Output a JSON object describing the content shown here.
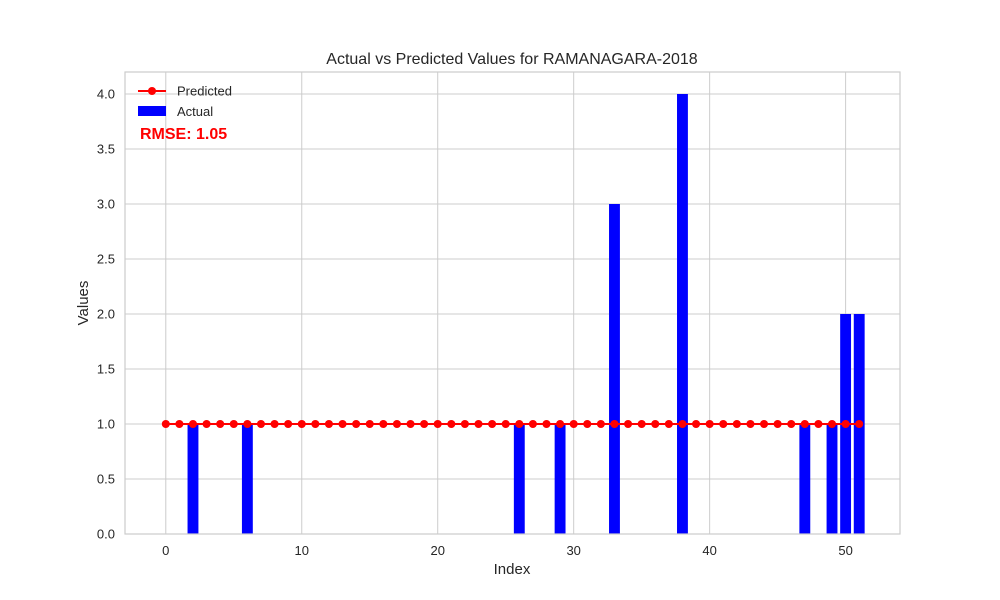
{
  "chart_data": {
    "type": "bar",
    "title": "Actual vs Predicted Values for RAMANAGARA-2018",
    "xlabel": "Index",
    "ylabel": "Values",
    "xlim": [
      -3,
      54
    ],
    "ylim": [
      0,
      4.2
    ],
    "xticks": [
      0,
      10,
      20,
      30,
      40,
      50
    ],
    "yticks": [
      0.0,
      0.5,
      1.0,
      1.5,
      2.0,
      2.5,
      3.0,
      3.5,
      4.0
    ],
    "xtick_labels": [
      "0",
      "10",
      "20",
      "30",
      "40",
      "50"
    ],
    "ytick_labels": [
      "0.0",
      "0.5",
      "1.0",
      "1.5",
      "2.0",
      "2.5",
      "3.0",
      "3.5",
      "4.0"
    ],
    "grid": true,
    "legend": {
      "position": "top-left",
      "entries": [
        "Predicted",
        "Actual"
      ]
    },
    "annotation": {
      "text": "RMSE: 1.05",
      "color": "#ff0000"
    },
    "series": [
      {
        "name": "Predicted",
        "type": "line",
        "color": "#ff0000",
        "x": [
          0,
          1,
          2,
          3,
          4,
          5,
          6,
          7,
          8,
          9,
          10,
          11,
          12,
          13,
          14,
          15,
          16,
          17,
          18,
          19,
          20,
          21,
          22,
          23,
          24,
          25,
          26,
          27,
          28,
          29,
          30,
          31,
          32,
          33,
          34,
          35,
          36,
          37,
          38,
          39,
          40,
          41,
          42,
          43,
          44,
          45,
          46,
          47,
          48,
          49,
          50,
          51
        ],
        "values": [
          1,
          1,
          1,
          1,
          1,
          1,
          1,
          1,
          1,
          1,
          1,
          1,
          1,
          1,
          1,
          1,
          1,
          1,
          1,
          1,
          1,
          1,
          1,
          1,
          1,
          1,
          1,
          1,
          1,
          1,
          1,
          1,
          1,
          1,
          1,
          1,
          1,
          1,
          1,
          1,
          1,
          1,
          1,
          1,
          1,
          1,
          1,
          1,
          1,
          1,
          1,
          1
        ]
      },
      {
        "name": "Actual",
        "type": "bar",
        "color": "#0000ff",
        "x": [
          0,
          1,
          2,
          3,
          4,
          5,
          6,
          7,
          8,
          9,
          10,
          11,
          12,
          13,
          14,
          15,
          16,
          17,
          18,
          19,
          20,
          21,
          22,
          23,
          24,
          25,
          26,
          27,
          28,
          29,
          30,
          31,
          32,
          33,
          34,
          35,
          36,
          37,
          38,
          39,
          40,
          41,
          42,
          43,
          44,
          45,
          46,
          47,
          48,
          49,
          50,
          51
        ],
        "values": [
          0,
          0,
          1,
          0,
          0,
          0,
          1,
          0,
          0,
          0,
          0,
          0,
          0,
          0,
          0,
          0,
          0,
          0,
          0,
          0,
          0,
          0,
          0,
          0,
          0,
          0,
          1,
          0,
          0,
          1,
          0,
          0,
          0,
          3,
          0,
          0,
          0,
          0,
          4,
          0,
          0,
          0,
          0,
          0,
          0,
          0,
          0,
          1,
          0,
          1,
          2,
          2
        ]
      }
    ]
  }
}
